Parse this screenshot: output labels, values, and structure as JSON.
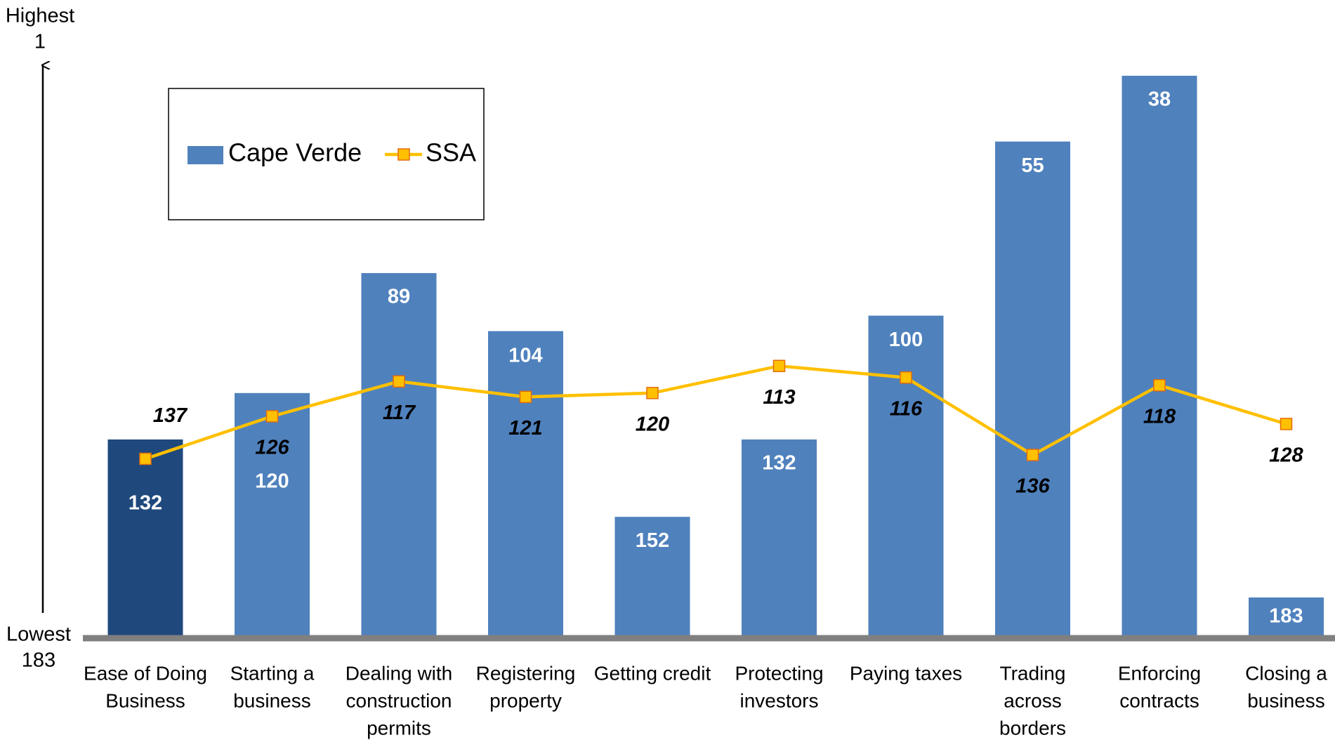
{
  "chart_data": {
    "type": "bar_line",
    "categories": [
      [
        "Ease of Doing",
        "Business"
      ],
      [
        "Starting a",
        "business"
      ],
      [
        "Dealing with",
        "construction",
        "permits"
      ],
      [
        "Registering",
        "property"
      ],
      [
        "Getting credit"
      ],
      [
        "Protecting",
        "investors"
      ],
      [
        "Paying taxes"
      ],
      [
        "Trading",
        "across",
        "borders"
      ],
      [
        "Enforcing",
        "contracts"
      ],
      [
        "Closing a",
        "business"
      ]
    ],
    "series": [
      {
        "name": "Cape Verde",
        "type": "bar",
        "color": "#4f81bd",
        "colors": [
          "#1f497d",
          "#4f81bd",
          "#4f81bd",
          "#4f81bd",
          "#4f81bd",
          "#4f81bd",
          "#4f81bd",
          "#4f81bd",
          "#4f81bd",
          "#4f81bd"
        ],
        "values": [
          132,
          120,
          89,
          104,
          152,
          132,
          100,
          55,
          38,
          183
        ]
      },
      {
        "name": "SSA",
        "type": "line",
        "color": "#ffc000",
        "marker_edge": "#e46c0a",
        "values": [
          137,
          126,
          117,
          121,
          120,
          113,
          116,
          136,
          118,
          128
        ]
      }
    ],
    "y_top_label": "Highest",
    "y_bottom_label": "Lowest",
    "ylim": [
      183,
      1
    ],
    "yticks": [
      183,
      1
    ],
    "legend": "upper left"
  }
}
